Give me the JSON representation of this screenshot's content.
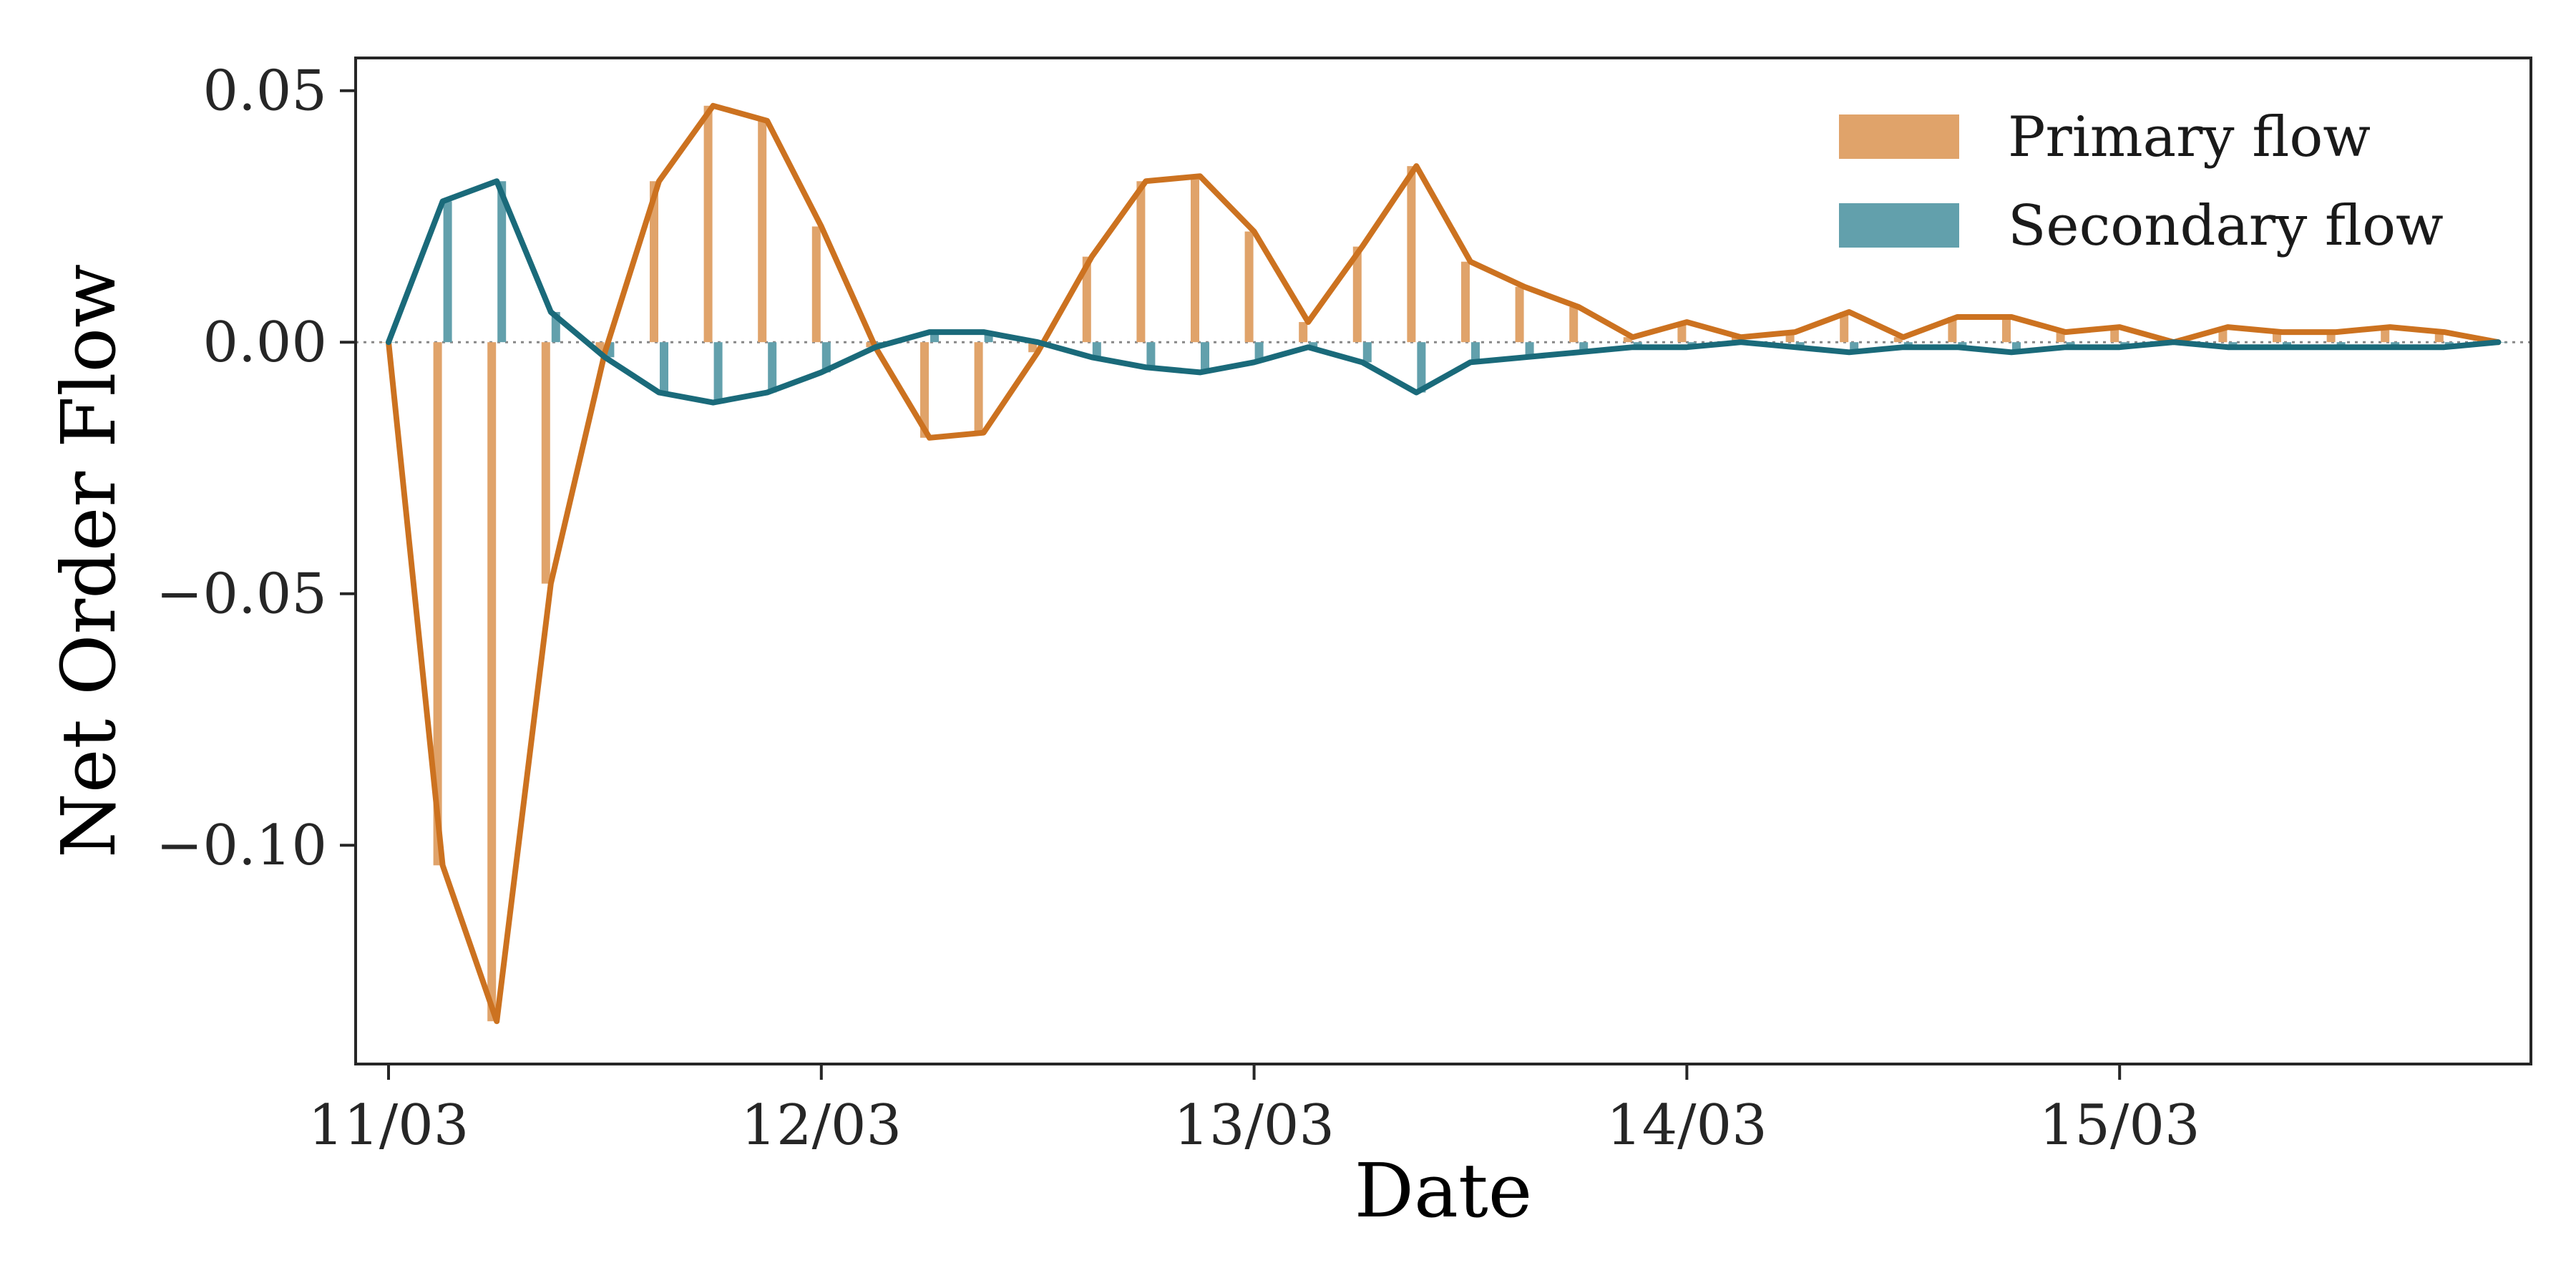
{
  "chart_data": {
    "type": "line",
    "xlabel": "Date",
    "ylabel": "Net Order Flow",
    "x_ticks": [
      "11/03",
      "12/03",
      "13/03",
      "14/03",
      "15/03"
    ],
    "y_ticks": [
      "0.05",
      "0.00",
      "−0.05",
      "−0.10"
    ],
    "y_tick_values": [
      0.05,
      0.0,
      -0.05,
      -0.1
    ],
    "ylim": [
      -0.1435,
      0.0565
    ],
    "x_step_hours": 3,
    "x_start": "11/03 00:00",
    "x_end": "15/03 21:00",
    "legend_position": "top-right",
    "zero_line": true,
    "grid": false,
    "series": [
      {
        "name": "Primary flow",
        "line_color": "#CC7220",
        "bar_color": "#E0A36A",
        "values": [
          0.0,
          -0.104,
          -0.135,
          -0.048,
          -0.002,
          0.032,
          0.047,
          0.044,
          0.023,
          -0.001,
          -0.019,
          -0.018,
          -0.002,
          0.017,
          0.032,
          0.033,
          0.022,
          0.004,
          0.019,
          0.035,
          0.016,
          0.011,
          0.007,
          0.001,
          0.004,
          0.001,
          0.002,
          0.006,
          0.001,
          0.005,
          0.005,
          0.002,
          0.003,
          0.0,
          0.003,
          0.002,
          0.002,
          0.003,
          0.002,
          0.0
        ]
      },
      {
        "name": "Secondary flow",
        "line_color": "#1A6A7A",
        "bar_color": "#62A0AC",
        "values": [
          0.0,
          0.028,
          0.032,
          0.006,
          -0.003,
          -0.01,
          -0.012,
          -0.01,
          -0.006,
          -0.001,
          0.002,
          0.002,
          0.0,
          -0.003,
          -0.005,
          -0.006,
          -0.004,
          -0.001,
          -0.004,
          -0.01,
          -0.004,
          -0.003,
          -0.002,
          -0.001,
          -0.001,
          0.0,
          -0.001,
          -0.002,
          -0.001,
          -0.001,
          -0.002,
          -0.001,
          -0.001,
          0.0,
          -0.001,
          -0.001,
          -0.001,
          -0.001,
          -0.001,
          0.0
        ]
      }
    ]
  }
}
